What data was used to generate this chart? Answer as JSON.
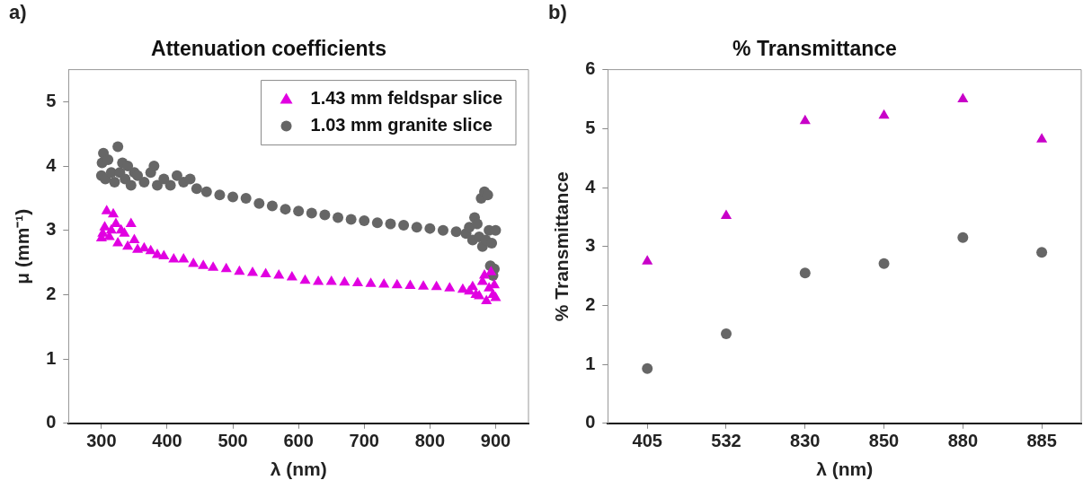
{
  "chart_data": [
    {
      "type": "scatter",
      "title": "Attenuation coefficients",
      "xlabel": "λ (nm)",
      "ylabel": "μ (mm⁻¹)",
      "annotations": [
        "a)"
      ],
      "xlim": [
        250,
        950
      ],
      "xticks": [
        300,
        400,
        500,
        600,
        700,
        800,
        900
      ],
      "ylim": [
        0,
        5.5
      ],
      "yticks": [
        0,
        1,
        2,
        3,
        4,
        5
      ],
      "legend": "top right",
      "grid": false,
      "series": [
        {
          "name": "1.43 mm feldspar slice",
          "color": "#e100e1",
          "marker": "triangle",
          "x": [
            300,
            302,
            305,
            308,
            312,
            315,
            318,
            322,
            325,
            330,
            335,
            340,
            345,
            350,
            355,
            365,
            375,
            385,
            395,
            410,
            425,
            440,
            455,
            470,
            490,
            510,
            530,
            550,
            570,
            590,
            610,
            630,
            650,
            670,
            690,
            710,
            730,
            750,
            770,
            790,
            810,
            830,
            850,
            860,
            865,
            870,
            875,
            880,
            883,
            886,
            890,
            893,
            896,
            898,
            900
          ],
          "values": [
            2.88,
            2.95,
            3.05,
            3.3,
            2.9,
            3.0,
            3.25,
            3.1,
            2.8,
            3.0,
            2.95,
            2.75,
            3.1,
            2.85,
            2.7,
            2.72,
            2.68,
            2.62,
            2.6,
            2.55,
            2.55,
            2.48,
            2.45,
            2.42,
            2.4,
            2.36,
            2.34,
            2.32,
            2.3,
            2.27,
            2.22,
            2.2,
            2.2,
            2.19,
            2.18,
            2.17,
            2.16,
            2.15,
            2.14,
            2.13,
            2.12,
            2.1,
            2.08,
            2.05,
            2.12,
            2.0,
            1.98,
            2.2,
            2.3,
            1.9,
            2.1,
            2.35,
            2.0,
            2.15,
            1.95
          ]
        },
        {
          "name": "1.03 mm granite slice",
          "color": "#666666",
          "marker": "circle",
          "x": [
            300,
            301,
            303,
            306,
            310,
            315,
            320,
            325,
            328,
            332,
            336,
            340,
            345,
            350,
            355,
            365,
            375,
            380,
            385,
            395,
            405,
            415,
            425,
            435,
            445,
            460,
            480,
            500,
            520,
            540,
            560,
            580,
            600,
            620,
            640,
            660,
            680,
            700,
            720,
            740,
            760,
            780,
            800,
            820,
            840,
            855,
            860,
            865,
            868,
            872,
            875,
            878,
            880,
            883,
            885,
            888,
            890,
            892,
            894,
            896,
            898,
            900
          ],
          "values": [
            3.85,
            4.05,
            4.2,
            3.8,
            4.1,
            3.9,
            3.75,
            4.3,
            3.9,
            4.05,
            3.8,
            4.0,
            3.7,
            3.9,
            3.85,
            3.75,
            3.9,
            4.0,
            3.7,
            3.8,
            3.7,
            3.85,
            3.75,
            3.8,
            3.65,
            3.6,
            3.55,
            3.52,
            3.5,
            3.42,
            3.38,
            3.33,
            3.3,
            3.27,
            3.24,
            3.2,
            3.17,
            3.15,
            3.12,
            3.1,
            3.08,
            3.05,
            3.03,
            3.0,
            2.98,
            2.95,
            3.05,
            2.85,
            3.2,
            3.1,
            2.9,
            3.5,
            2.75,
            3.6,
            2.85,
            3.55,
            3.0,
            2.45,
            2.8,
            2.3,
            2.4,
            3.0
          ]
        }
      ]
    },
    {
      "type": "scatter",
      "title": "% Transmittance",
      "xlabel": "λ (nm)",
      "ylabel": "% Transmittance",
      "annotations": [
        "b)"
      ],
      "categories": [
        "405",
        "532",
        "830",
        "850",
        "880",
        "885"
      ],
      "ylim": [
        0,
        6
      ],
      "yticks": [
        0,
        1,
        2,
        3,
        4,
        5,
        6
      ],
      "legend": false,
      "grid": false,
      "series": [
        {
          "color": "#c800c8",
          "marker": "triangle",
          "values": [
            2.75,
            3.52,
            5.13,
            5.22,
            5.5,
            4.82
          ]
        },
        {
          "color": "#666666",
          "marker": "circle",
          "values": [
            0.93,
            1.52,
            2.55,
            2.71,
            3.15,
            2.9
          ]
        }
      ]
    }
  ]
}
